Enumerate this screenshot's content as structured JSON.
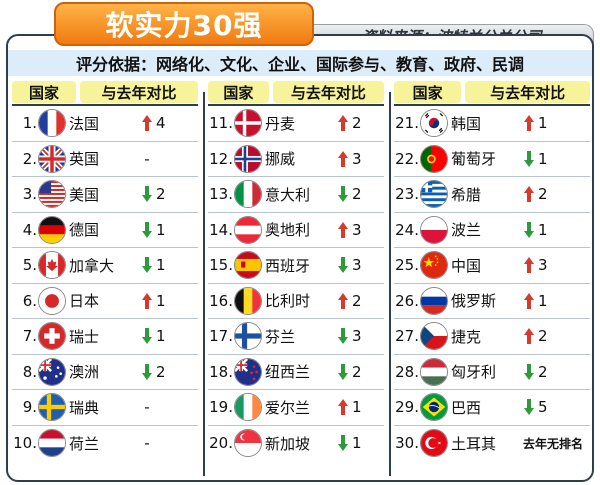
{
  "header": {
    "title": "软实力30强",
    "source": "资料来源：波特兰公关公司",
    "criteria": "评分依据：网络化、文化、企业、国际参与、教育、政府、民调"
  },
  "columns": [
    {
      "head_country": "国家",
      "head_change": "与去年对比",
      "rows": [
        {
          "rank": "1.",
          "name": "法国",
          "dir": "up",
          "change": "4",
          "flag": "fr"
        },
        {
          "rank": "2.",
          "name": "英国",
          "dir": "none",
          "change": "-",
          "flag": "gb"
        },
        {
          "rank": "3.",
          "name": "美国",
          "dir": "down",
          "change": "2",
          "flag": "us"
        },
        {
          "rank": "4.",
          "name": "德国",
          "dir": "down",
          "change": "1",
          "flag": "de"
        },
        {
          "rank": "5.",
          "name": "加拿大",
          "dir": "down",
          "change": "1",
          "flag": "ca"
        },
        {
          "rank": "6.",
          "name": "日本",
          "dir": "up",
          "change": "1",
          "flag": "jp"
        },
        {
          "rank": "7.",
          "name": "瑞士",
          "dir": "down",
          "change": "1",
          "flag": "ch"
        },
        {
          "rank": "8.",
          "name": "澳洲",
          "dir": "down",
          "change": "2",
          "flag": "au"
        },
        {
          "rank": "9.",
          "name": "瑞典",
          "dir": "none",
          "change": "-",
          "flag": "se"
        },
        {
          "rank": "10.",
          "name": "荷兰",
          "dir": "none",
          "change": "-",
          "flag": "nl"
        }
      ]
    },
    {
      "head_country": "国家",
      "head_change": "与去年对比",
      "rows": [
        {
          "rank": "11.",
          "name": "丹麦",
          "dir": "up",
          "change": "2",
          "flag": "dk"
        },
        {
          "rank": "12.",
          "name": "挪威",
          "dir": "up",
          "change": "3",
          "flag": "no"
        },
        {
          "rank": "13.",
          "name": "意大利",
          "dir": "down",
          "change": "2",
          "flag": "it"
        },
        {
          "rank": "14.",
          "name": "奥地利",
          "dir": "up",
          "change": "3",
          "flag": "at"
        },
        {
          "rank": "15.",
          "name": "西班牙",
          "dir": "down",
          "change": "3",
          "flag": "es"
        },
        {
          "rank": "16.",
          "name": "比利时",
          "dir": "up",
          "change": "2",
          "flag": "be"
        },
        {
          "rank": "17.",
          "name": "芬兰",
          "dir": "down",
          "change": "3",
          "flag": "fi"
        },
        {
          "rank": "18.",
          "name": "纽西兰",
          "dir": "down",
          "change": "2",
          "flag": "nz"
        },
        {
          "rank": "19.",
          "name": "爱尔兰",
          "dir": "up",
          "change": "1",
          "flag": "ie"
        },
        {
          "rank": "20.",
          "name": "新加坡",
          "dir": "down",
          "change": "1",
          "flag": "sg"
        }
      ]
    },
    {
      "head_country": "国家",
      "head_change": "与去年对比",
      "rows": [
        {
          "rank": "21.",
          "name": "韩国",
          "dir": "up",
          "change": "1",
          "flag": "kr"
        },
        {
          "rank": "22.",
          "name": "葡萄牙",
          "dir": "down",
          "change": "1",
          "flag": "pt"
        },
        {
          "rank": "23.",
          "name": "希腊",
          "dir": "up",
          "change": "2",
          "flag": "gr"
        },
        {
          "rank": "24.",
          "name": "波兰",
          "dir": "down",
          "change": "1",
          "flag": "pl"
        },
        {
          "rank": "25.",
          "name": "中国",
          "dir": "up",
          "change": "3",
          "flag": "cn"
        },
        {
          "rank": "26.",
          "name": "俄罗斯",
          "dir": "up",
          "change": "1",
          "flag": "ru"
        },
        {
          "rank": "27.",
          "name": "捷克",
          "dir": "up",
          "change": "2",
          "flag": "cz"
        },
        {
          "rank": "28.",
          "name": "匈牙利",
          "dir": "down",
          "change": "2",
          "flag": "hu"
        },
        {
          "rank": "29.",
          "name": "巴西",
          "dir": "down",
          "change": "5",
          "flag": "br"
        },
        {
          "rank": "30.",
          "name": "土耳其",
          "dir": "none",
          "change": "去年无排名",
          "flag": "tr"
        }
      ]
    }
  ],
  "colors": {
    "up": "#d63a2a",
    "down": "#2e9a3c",
    "title_orange": "#f07a10",
    "header_yellow": "#f7f39b",
    "criteria_bg": "#dcecf8",
    "frame": "#2d3e50"
  }
}
